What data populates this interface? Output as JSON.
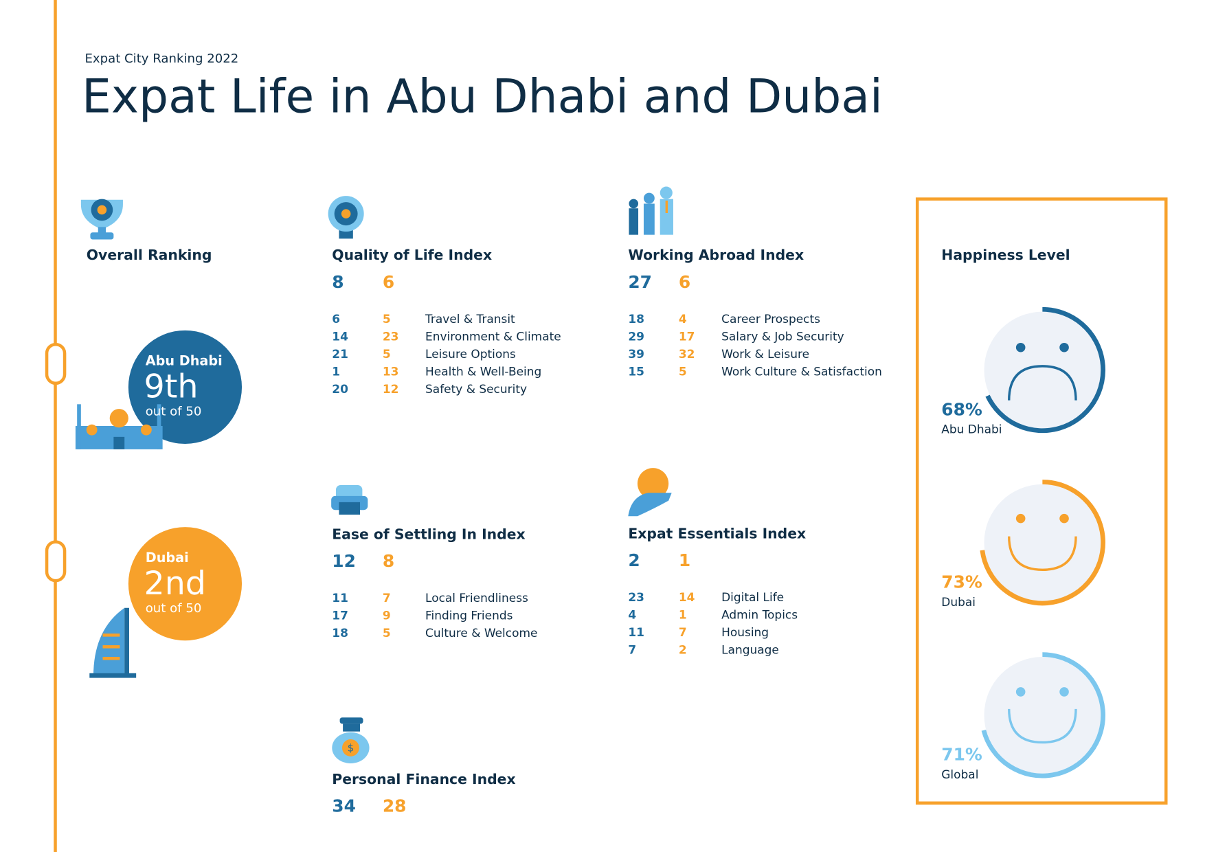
{
  "header": {
    "subtitle": "Expat City Ranking 2022",
    "title": "Expat Life in Abu Dhabi and Dubai"
  },
  "overall": {
    "title": "Overall Ranking",
    "cities": [
      {
        "name": "Abu Dhabi",
        "rank": "9th",
        "out_of": "out of 50"
      },
      {
        "name": "Dubai",
        "rank": "2nd",
        "out_of": "out of 50"
      }
    ]
  },
  "indices": [
    {
      "title": "Quality of Life Index",
      "abu_dhabi": 8,
      "dubai": 6,
      "rows": [
        {
          "abu_dhabi": 6,
          "dubai": 5,
          "label": "Travel & Transit"
        },
        {
          "abu_dhabi": 14,
          "dubai": 23,
          "label": "Environment & Climate"
        },
        {
          "abu_dhabi": 21,
          "dubai": 5,
          "label": "Leisure Options"
        },
        {
          "abu_dhabi": 1,
          "dubai": 13,
          "label": "Health & Well-Being"
        },
        {
          "abu_dhabi": 20,
          "dubai": 12,
          "label": "Safety & Security"
        }
      ]
    },
    {
      "title": "Working Abroad Index",
      "abu_dhabi": 27,
      "dubai": 6,
      "rows": [
        {
          "abu_dhabi": 18,
          "dubai": 4,
          "label": "Career Prospects"
        },
        {
          "abu_dhabi": 29,
          "dubai": 17,
          "label": "Salary & Job Security"
        },
        {
          "abu_dhabi": 39,
          "dubai": 32,
          "label": "Work & Leisure"
        },
        {
          "abu_dhabi": 15,
          "dubai": 5,
          "label": "Work Culture & Satisfaction"
        }
      ]
    },
    {
      "title": "Ease of Settling In Index",
      "abu_dhabi": 12,
      "dubai": 8,
      "rows": [
        {
          "abu_dhabi": 11,
          "dubai": 7,
          "label": "Local Friendliness"
        },
        {
          "abu_dhabi": 17,
          "dubai": 9,
          "label": "Finding Friends"
        },
        {
          "abu_dhabi": 18,
          "dubai": 5,
          "label": "Culture & Welcome"
        }
      ]
    },
    {
      "title": "Expat Essentials Index",
      "abu_dhabi": 2,
      "dubai": 1,
      "rows": [
        {
          "abu_dhabi": 23,
          "dubai": 14,
          "label": "Digital Life"
        },
        {
          "abu_dhabi": 4,
          "dubai": 1,
          "label": "Admin Topics"
        },
        {
          "abu_dhabi": 11,
          "dubai": 7,
          "label": "Housing"
        },
        {
          "abu_dhabi": 7,
          "dubai": 2,
          "label": "Language"
        }
      ]
    },
    {
      "title": "Personal Finance Index",
      "abu_dhabi": 34,
      "dubai": 28,
      "rows": []
    }
  ],
  "happiness": {
    "title": "Happiness Level",
    "items": [
      {
        "name": "Abu Dhabi",
        "value": 68,
        "value_label": "68%",
        "color": "#1f6b9c"
      },
      {
        "name": "Dubai",
        "value": 73,
        "value_label": "73%",
        "color": "#f7a12b"
      },
      {
        "name": "Global",
        "value": 71,
        "value_label": "71%",
        "color": "#7cc7ee"
      }
    ]
  }
}
